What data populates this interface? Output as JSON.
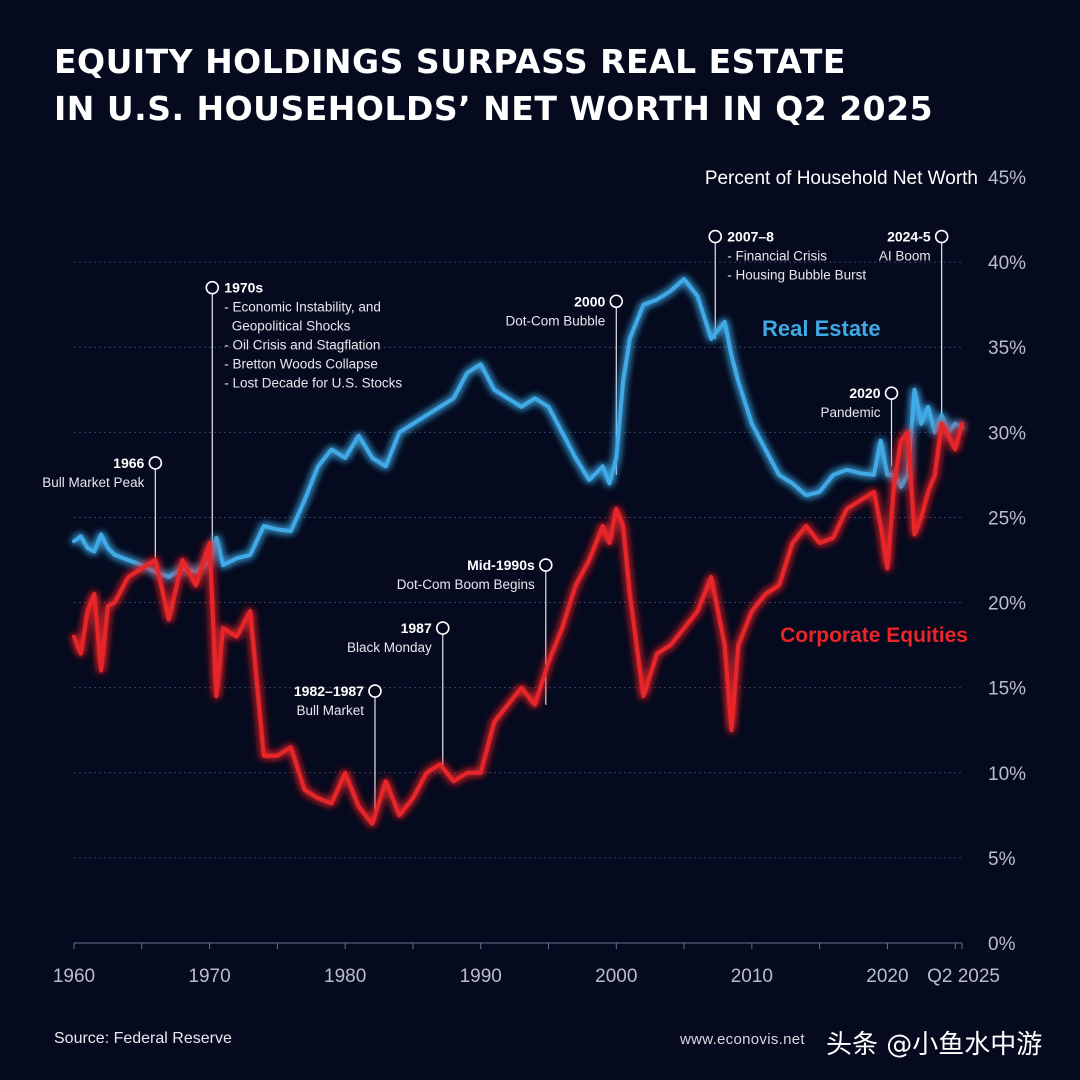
{
  "title": {
    "line1": "EQUITY HOLDINGS SURPASS REAL ESTATE",
    "line2": "IN U.S. HOUSEHOLDS’ NET WORTH IN Q2 2025"
  },
  "footer": {
    "source": "Source: Federal Reserve",
    "website": "www.econovis.net",
    "watermark": "头条 @小鱼水中游"
  },
  "colors": {
    "background": "#050a1e",
    "real_estate": "#3fa9e6",
    "equities": "#e8262a",
    "grid": "#3a4160"
  },
  "chart_data": {
    "type": "line",
    "title": "",
    "ylabel": "Percent of Household Net Worth",
    "xlabel": "",
    "xlim": [
      1960,
      2025.5
    ],
    "ylim": [
      0,
      45
    ],
    "y_ticks": [
      0,
      5,
      10,
      15,
      20,
      25,
      30,
      35,
      40,
      45
    ],
    "y_tick_labels": [
      "0%",
      "5%",
      "10%",
      "15%",
      "20%",
      "25%",
      "30%",
      "35%",
      "40%",
      "45%"
    ],
    "x_ticks": [
      1960,
      1970,
      1980,
      1990,
      2000,
      2010,
      2020,
      2025.5
    ],
    "x_tick_labels": [
      "1960",
      "1970",
      "1980",
      "1990",
      "2000",
      "2010",
      "2020",
      "Q2 2025"
    ],
    "grid": true,
    "series": [
      {
        "name": "Real Estate",
        "label": "Real Estate",
        "x": [
          1960,
          1960.5,
          1961,
          1961.5,
          1962,
          1962.5,
          1963,
          1964,
          1965,
          1966,
          1967,
          1968,
          1969,
          1970,
          1970.5,
          1971,
          1972,
          1973,
          1974,
          1975,
          1976,
          1977,
          1978,
          1979,
          1980,
          1981,
          1982,
          1983,
          1984,
          1985,
          1986,
          1987,
          1988,
          1989,
          1990,
          1991,
          1992,
          1993,
          1994,
          1995,
          1996,
          1997,
          1998,
          1999,
          1999.5,
          2000,
          2000.5,
          2001,
          2002,
          2003,
          2004,
          2005,
          2006,
          2007,
          2008,
          2008.5,
          2009,
          2010,
          2011,
          2012,
          2013,
          2014,
          2015,
          2016,
          2017,
          2018,
          2019,
          2019.5,
          2020,
          2020.5,
          2021,
          2021.5,
          2022,
          2022.5,
          2023,
          2023.5,
          2024,
          2024.5,
          2025,
          2025.5
        ],
        "values": [
          23.6,
          23.9,
          23.2,
          23.0,
          24.0,
          23.2,
          22.8,
          22.5,
          22.2,
          21.8,
          21.5,
          22.0,
          21.8,
          22.4,
          23.8,
          22.2,
          22.6,
          22.8,
          24.5,
          24.3,
          24.2,
          26.0,
          28.0,
          29.0,
          28.5,
          29.8,
          28.5,
          28.0,
          30.0,
          30.5,
          31.0,
          31.5,
          32.0,
          33.5,
          34.0,
          32.5,
          32.0,
          31.5,
          32.0,
          31.5,
          30.0,
          28.5,
          27.2,
          28.0,
          27.0,
          28.5,
          33.0,
          35.5,
          37.5,
          37.8,
          38.3,
          39.0,
          38.0,
          35.5,
          36.5,
          34.5,
          33.0,
          30.5,
          29.0,
          27.5,
          27.0,
          26.3,
          26.5,
          27.5,
          27.8,
          27.6,
          27.5,
          29.5,
          27.5,
          27.5,
          26.8,
          27.5,
          32.5,
          30.5,
          31.5,
          30.0,
          31.0,
          30.0,
          30.5,
          30.3
        ],
        "color": "#3fa9e6"
      },
      {
        "name": "Corporate Equities",
        "label": "Corporate Equities",
        "x": [
          1960,
          1960.5,
          1961,
          1961.5,
          1962,
          1962.5,
          1963,
          1964,
          1965,
          1966,
          1967,
          1968,
          1969,
          1970,
          1970.5,
          1971,
          1972,
          1973,
          1974,
          1975,
          1976,
          1977,
          1978,
          1979,
          1980,
          1981,
          1982,
          1983,
          1984,
          1985,
          1986,
          1987,
          1988,
          1989,
          1990,
          1991,
          1992,
          1993,
          1994,
          1995,
          1996,
          1997,
          1998,
          1999,
          1999.5,
          2000,
          2000.5,
          2001,
          2002,
          2003,
          2004,
          2005,
          2006,
          2007,
          2008,
          2008.5,
          2009,
          2010,
          2011,
          2012,
          2013,
          2014,
          2015,
          2016,
          2017,
          2018,
          2019,
          2019.5,
          2020,
          2020.5,
          2021,
          2021.5,
          2022,
          2022.5,
          2023,
          2023.5,
          2024,
          2024.5,
          2025,
          2025.5
        ],
        "values": [
          18.0,
          17.0,
          19.5,
          20.5,
          16.0,
          19.8,
          20.0,
          21.5,
          22.0,
          22.5,
          19.0,
          22.5,
          21.0,
          23.5,
          14.5,
          18.5,
          18.0,
          19.5,
          11.0,
          11.0,
          11.5,
          9.0,
          8.5,
          8.2,
          10.0,
          8.0,
          7.0,
          9.5,
          7.5,
          8.5,
          10.0,
          10.5,
          9.5,
          10.0,
          10.0,
          13.0,
          14.0,
          15.0,
          14.0,
          16.5,
          18.5,
          21.0,
          22.5,
          24.5,
          23.5,
          25.5,
          24.5,
          20.5,
          14.5,
          17.0,
          17.5,
          18.5,
          19.5,
          21.5,
          17.5,
          12.5,
          17.5,
          19.5,
          20.5,
          21.0,
          23.5,
          24.5,
          23.5,
          23.8,
          25.5,
          26.0,
          26.5,
          24.5,
          22.0,
          27.0,
          29.5,
          30.0,
          24.0,
          25.0,
          26.5,
          27.5,
          30.5,
          29.8,
          29.0,
          30.5
        ],
        "color": "#e8262a"
      }
    ],
    "annotations": [
      {
        "year": 1966,
        "value": 28.2,
        "title": "1966",
        "lines": [
          "Bull Market Peak"
        ],
        "side": "left",
        "line_to": 22.0
      },
      {
        "year": 1970.2,
        "value": 38.5,
        "title": "1970s",
        "lines": [
          "- Economic Instability, and",
          "  Geopolitical Shocks",
          "- Oil Crisis and Stagflation",
          "- Bretton Woods Collapse",
          "- Lost Decade for U.S. Stocks"
        ],
        "side": "right",
        "line_to": 22.5
      },
      {
        "year": 1982.2,
        "value": 14.8,
        "title": "1982–1987",
        "lines": [
          "Bull Market"
        ],
        "side": "left",
        "line_to": 7.2
      },
      {
        "year": 1987.2,
        "value": 18.5,
        "title": "1987",
        "lines": [
          "Black Monday"
        ],
        "side": "left",
        "line_to": 10.2
      },
      {
        "year": 1994.8,
        "value": 22.2,
        "title": "Mid-1990s",
        "lines": [
          "Dot-Com Boom Begins"
        ],
        "side": "left",
        "line_to": 14.0
      },
      {
        "year": 2000,
        "value": 37.7,
        "title": "2000",
        "lines": [
          "Dot-Com Bubble"
        ],
        "side": "left",
        "line_to": 27.5
      },
      {
        "year": 2007.3,
        "value": 41.5,
        "title": "2007–8",
        "lines": [
          "- Financial Crisis",
          "- Housing Bubble Burst"
        ],
        "side": "right",
        "line_to": 35.5
      },
      {
        "year": 2020.3,
        "value": 32.3,
        "title": "2020",
        "lines": [
          "Pandemic"
        ],
        "side": "left",
        "line_to": 28.0
      },
      {
        "year": 2024,
        "value": 41.5,
        "title": "2024-5",
        "lines": [
          "AI Boom"
        ],
        "side": "left",
        "line_to": 30.8
      }
    ]
  }
}
